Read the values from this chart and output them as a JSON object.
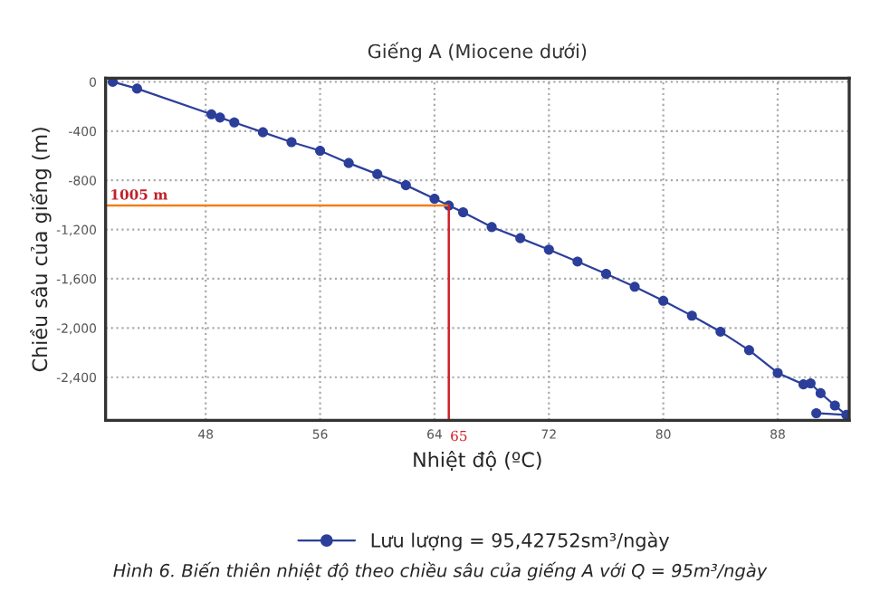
{
  "chart_data": {
    "type": "line",
    "title": "Giếng A (Miocene dưới)",
    "xlabel": "Nhiệt độ (ºC)",
    "ylabel": "Chiều sâu của giếng (m)",
    "annotations": [
      "Hình 6. Biến thiên nhiệt độ theo chiều sâu của giếng A với Q = 95m³/ngày"
    ],
    "series": [
      {
        "name": "Lưu lượng = 95,42752sm³/ngày",
        "color": "#2b3f9a",
        "x": [
          41.5,
          43.2,
          48.4,
          49,
          50,
          52,
          54,
          56,
          58,
          60,
          62,
          64,
          65,
          66,
          68,
          70,
          72,
          74,
          76,
          78,
          80,
          82,
          84,
          86,
          88,
          89.8,
          90.3,
          91,
          92,
          92.8,
          90.7
        ],
        "values": [
          0,
          -55,
          -264,
          -290,
          -330,
          -410,
          -490,
          -560,
          -660,
          -750,
          -840,
          -950,
          -1005,
          -1060,
          -1180,
          -1270,
          -1363,
          -1460,
          -1560,
          -1665,
          -1779,
          -1900,
          -2030,
          -2180,
          -2365,
          -2458,
          -2450,
          -2530,
          -2630,
          -2706,
          -2692
        ]
      }
    ],
    "xlim": [
      41,
      93
    ],
    "xticks": [
      48,
      56,
      64,
      72,
      80,
      88
    ],
    "ylim": [
      -2750,
      30
    ],
    "yticks": [
      0,
      -400,
      -800,
      {
        "value": -1200,
        "label": "-1,200"
      },
      {
        "value": -1600,
        "label": "-1,600"
      },
      {
        "value": -2000,
        "label": "-2,000"
      },
      {
        "value": -2400,
        "label": "-2,400"
      }
    ],
    "ref_lines": [
      {
        "axis": "y",
        "value": -1005,
        "label": "1005 m",
        "color": "#f07f1e"
      },
      {
        "axis": "x",
        "value": 65,
        "label": "65",
        "color": "#d0202a"
      }
    ],
    "grid": true,
    "legend": "bottom",
    "marker": "circle",
    "line_style": "solid"
  }
}
